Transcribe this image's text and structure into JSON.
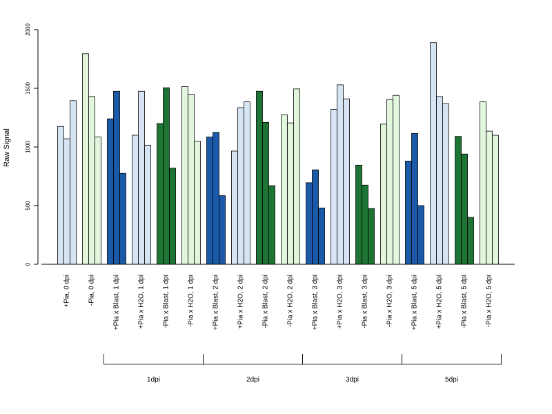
{
  "chart_data": {
    "type": "bar",
    "ylabel": "Raw Signal",
    "ylim": [
      0,
      2000
    ],
    "yticks": [
      0,
      500,
      1000,
      1500,
      2000
    ],
    "colors": {
      "light_blue": "#d6e4f4",
      "dark_blue": "#1b5aa8",
      "dark_green": "#1e7533",
      "light_green": "#e1f6dc",
      "outline": "#000000"
    },
    "categories": [
      {
        "label": "+Pia, 0 dpi",
        "color": "light_blue",
        "values": [
          1175,
          1070,
          1395
        ]
      },
      {
        "label": "-Pia, 0 dpi",
        "color": "light_green",
        "values": [
          1795,
          1430,
          1085
        ]
      },
      {
        "label": "+Pia x Blast, 1 dpi",
        "color": "dark_blue",
        "values": [
          1240,
          1475,
          775
        ]
      },
      {
        "label": "+Pia x H2O, 1 dpi",
        "color": "light_blue",
        "values": [
          1100,
          1475,
          1015
        ]
      },
      {
        "label": "-Pia x Blast, 1 dpi",
        "color": "dark_green",
        "values": [
          1200,
          1505,
          820
        ]
      },
      {
        "label": "-Pia x H2O, 1 dpi",
        "color": "light_green",
        "values": [
          1515,
          1450,
          1050
        ]
      },
      {
        "label": "+Pia x Blast, 2 dpi",
        "color": "dark_blue",
        "values": [
          1085,
          1125,
          585
        ]
      },
      {
        "label": "+Pia x H2O, 2 dpi",
        "color": "light_blue",
        "values": [
          965,
          1335,
          1385
        ]
      },
      {
        "label": "-Pia x Blast, 2 dpi",
        "color": "dark_green",
        "values": [
          1475,
          1210,
          670
        ]
      },
      {
        "label": "-Pia x H2O, 2 dpi",
        "color": "light_green",
        "values": [
          1275,
          1205,
          1495
        ]
      },
      {
        "label": "+Pia x Blast, 3 dpi",
        "color": "dark_blue",
        "values": [
          695,
          805,
          480
        ]
      },
      {
        "label": "+Pia x H2O, 3 dpi",
        "color": "light_blue",
        "values": [
          1320,
          1530,
          1410
        ]
      },
      {
        "label": "-Pia x Blast, 3 dpi",
        "color": "dark_green",
        "values": [
          845,
          675,
          475
        ]
      },
      {
        "label": "-Pia x H2O, 3 dpi",
        "color": "light_green",
        "values": [
          1195,
          1405,
          1440
        ]
      },
      {
        "label": "+Pia x Blast, 5 dpi",
        "color": "dark_blue",
        "values": [
          880,
          1115,
          500
        ]
      },
      {
        "label": "+Pia x H2O, 5 dpi",
        "color": "light_blue",
        "values": [
          1890,
          1430,
          1370
        ]
      },
      {
        "label": "-Pia x Blast, 5 dpi",
        "color": "dark_green",
        "values": [
          1090,
          940,
          400
        ]
      },
      {
        "label": "-Pia x H2O, 5 dpi",
        "color": "light_green",
        "values": [
          1385,
          1135,
          1100
        ]
      }
    ],
    "group_brackets": [
      {
        "label": "1dpi",
        "from": 2,
        "to": 5
      },
      {
        "label": "2dpi",
        "from": 6,
        "to": 9
      },
      {
        "label": "3dpi",
        "from": 10,
        "to": 13
      },
      {
        "label": "5dpi",
        "from": 14,
        "to": 17
      }
    ]
  }
}
